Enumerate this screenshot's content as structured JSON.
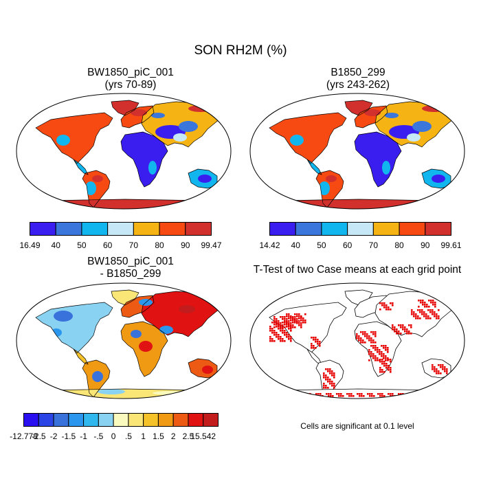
{
  "figure": {
    "title": "SON RH2M (%)"
  },
  "panels": [
    {
      "title_line1": "BW1850_piC_001",
      "title_line2": "(yrs 70-89)",
      "type": "absolute",
      "colorbar": {
        "colors": [
          "#3a1ef0",
          "#3a76dc",
          "#12b6ee",
          "#c6e8f6",
          "#f6b414",
          "#f64a12",
          "#d2302c"
        ],
        "labels": [
          "16.49",
          "40",
          "50",
          "60",
          "70",
          "80",
          "90",
          "99.47"
        ]
      }
    },
    {
      "title_line1": "B1850_299",
      "title_line2": "(yrs 243-262)",
      "type": "absolute",
      "colorbar": {
        "colors": [
          "#3a1ef0",
          "#3a76dc",
          "#12b6ee",
          "#c6e8f6",
          "#f6b414",
          "#f64a12",
          "#d2302c"
        ],
        "labels": [
          "14.42",
          "40",
          "50",
          "60",
          "70",
          "80",
          "90",
          "99.61"
        ]
      }
    },
    {
      "title_line1": "BW1850_piC_001",
      "title_line2": "- B1850_299",
      "type": "difference",
      "colorbar": {
        "colors": [
          "#2a10f0",
          "#2a44e6",
          "#3a72dc",
          "#2a96ee",
          "#30b8ee",
          "#8ad2f2",
          "#fafabe",
          "#fae676",
          "#f6c22a",
          "#f09a14",
          "#ec5a14",
          "#e01212",
          "#c21c1c"
        ],
        "labels": [
          "-12.778",
          "-2.5",
          "-2",
          "-1.5",
          "-1",
          "-.5",
          "0",
          ".5",
          "1",
          "1.5",
          "2",
          "2.5",
          "15.542"
        ]
      }
    },
    {
      "title_line1": "T-Test of two Case means at each grid point",
      "type": "ttest",
      "note": "Cells are significant at 0.1 level"
    }
  ]
}
